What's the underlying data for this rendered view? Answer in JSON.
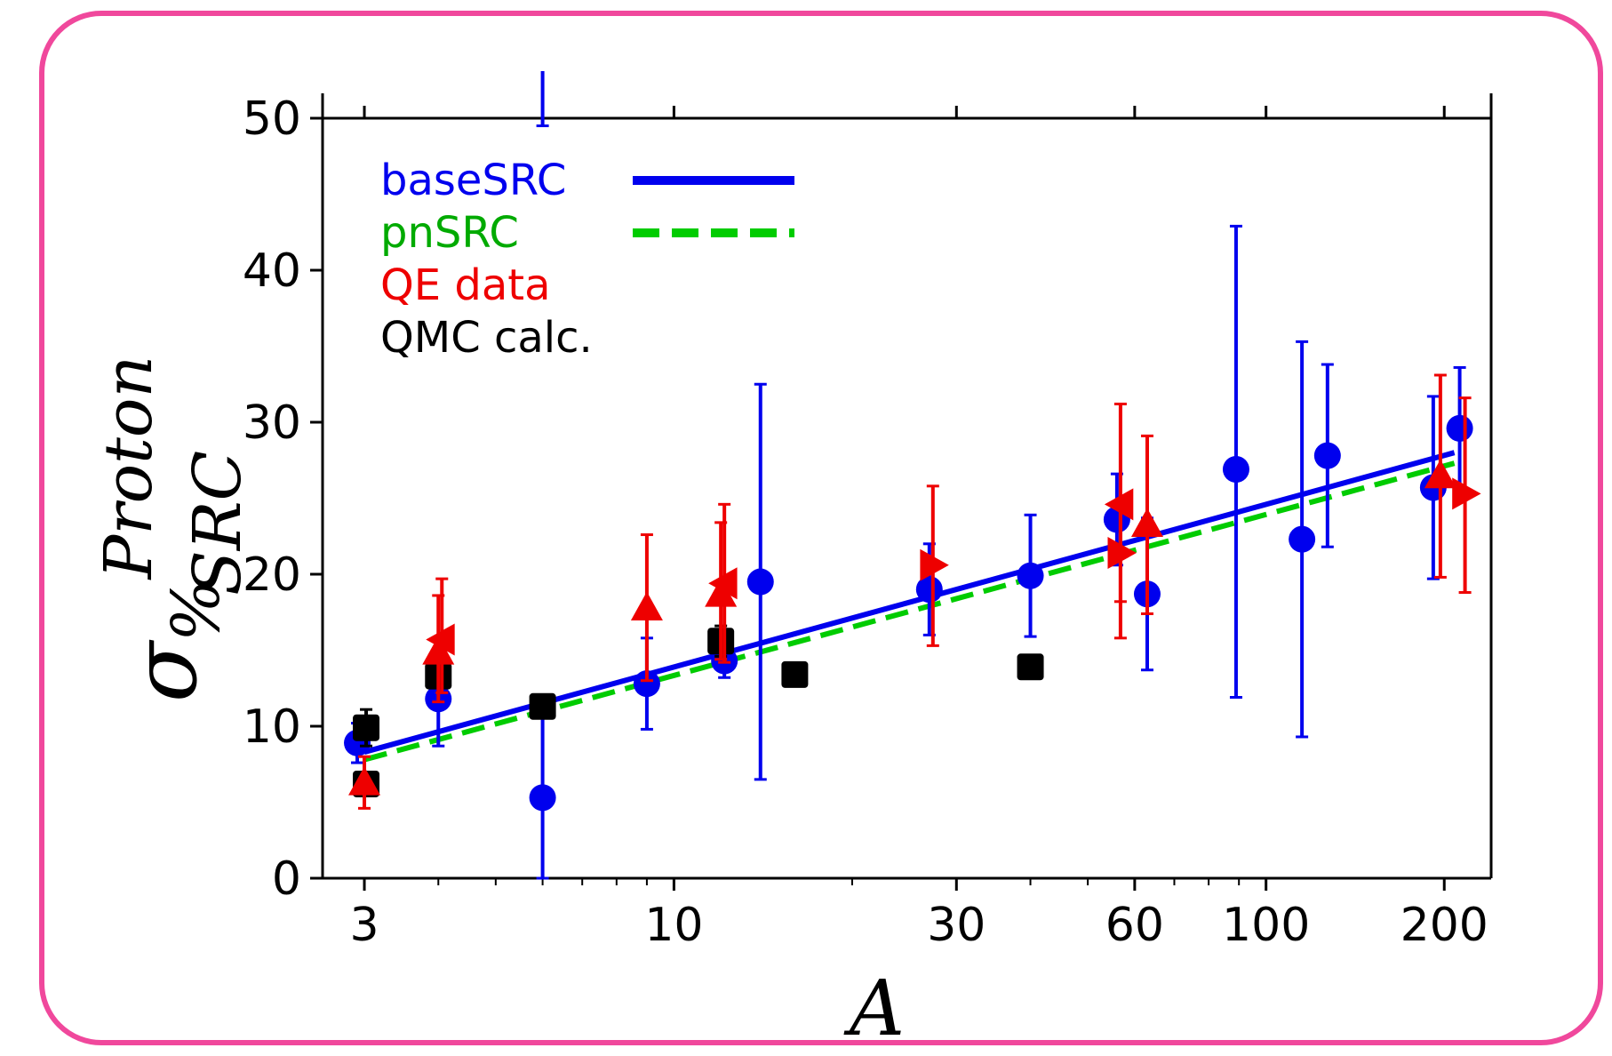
{
  "chart_data": {
    "type": "scatter",
    "xlabel": "A",
    "ylabel": "%",
    "ylabel_main": "σ",
    "ylabel_sup": "Proton",
    "ylabel_sub": "SRC",
    "x_scale": "log",
    "xlim": [
      2.55,
      240
    ],
    "ylim": [
      0,
      50
    ],
    "x_ticks": [
      3,
      10,
      30,
      60,
      100,
      200
    ],
    "y_ticks": [
      0,
      10,
      20,
      30,
      40,
      50
    ],
    "grid": false,
    "legend_position": "top-left",
    "series": [
      {
        "name": "baseSRC",
        "kind": "line",
        "color": "#0000ee",
        "style": "solid",
        "x": [
          3,
          208
        ],
        "y": [
          8.3,
          28.0
        ]
      },
      {
        "name": "pnSRC",
        "kind": "line",
        "color": "#00cc00",
        "style": "dashed",
        "x": [
          3,
          208
        ],
        "y": [
          7.8,
          27.3
        ]
      },
      {
        "name": "",
        "kind": "scatter",
        "marker": "circle",
        "color": "#0000ee",
        "points": [
          {
            "x": 3,
            "y": 8.9,
            "lo": 7.6,
            "hi": 10.2
          },
          {
            "x": 4,
            "y": 11.8,
            "lo": 8.7,
            "hi": 15.0
          },
          {
            "x": 6,
            "y": 5.3,
            "lo": 0.0,
            "hi": 11.0
          },
          {
            "x": 9,
            "y": 12.8,
            "lo": 9.8,
            "hi": 15.8
          },
          {
            "x": 12,
            "y": 14.3,
            "lo": 13.2,
            "hi": 15.4
          },
          {
            "x": 14,
            "y": 19.5,
            "lo": 6.5,
            "hi": 32.5
          },
          {
            "x": 27,
            "y": 19.0,
            "lo": 16.0,
            "hi": 22.0
          },
          {
            "x": 40,
            "y": 19.9,
            "lo": 15.9,
            "hi": 23.9
          },
          {
            "x": 56,
            "y": 23.6,
            "lo": 20.6,
            "hi": 26.6
          },
          {
            "x": 63,
            "y": 18.7,
            "lo": 13.7,
            "hi": 23.7
          },
          {
            "x": 89,
            "y": 26.9,
            "lo": 11.9,
            "hi": 42.9
          },
          {
            "x": 115,
            "y": 22.3,
            "lo": 9.3,
            "hi": 35.3
          },
          {
            "x": 127,
            "y": 27.8,
            "lo": 21.8,
            "hi": 33.8
          },
          {
            "x": 197,
            "y": 25.7,
            "lo": 19.7,
            "hi": 31.7
          },
          {
            "x": 208,
            "y": 29.6,
            "lo": 25.6,
            "hi": 33.6
          }
        ]
      },
      {
        "name": "",
        "kind": "scatter",
        "marker": "square",
        "color": "#000000",
        "points": [
          {
            "x": 3,
            "y": 6.2,
            "lo": 5.7,
            "hi": 6.7
          },
          {
            "x": 3,
            "y": 9.9,
            "lo": 8.7,
            "hi": 11.1
          },
          {
            "x": 4,
            "y": 13.3,
            "lo": 12.8,
            "hi": 13.8
          },
          {
            "x": 6,
            "y": 11.3,
            "lo": 10.6,
            "hi": 12.0
          },
          {
            "x": 12,
            "y": 15.6,
            "lo": 14.6,
            "hi": 16.6
          },
          {
            "x": 16,
            "y": 13.4,
            "lo": 12.9,
            "hi": 13.9
          },
          {
            "x": 40,
            "y": 13.9,
            "lo": 13.2,
            "hi": 14.6
          }
        ]
      },
      {
        "name": "",
        "kind": "scatter",
        "marker": "mixed-triangles",
        "color": "#ee0000",
        "points": [
          {
            "x": 3,
            "y": 6.3,
            "lo": 4.6,
            "hi": 8.0,
            "marker": "up"
          },
          {
            "x": 4,
            "y": 14.9,
            "lo": 11.6,
            "hi": 18.6,
            "marker": "up"
          },
          {
            "x": 4,
            "y": 15.7,
            "lo": 12.2,
            "hi": 19.7,
            "marker": "left"
          },
          {
            "x": 9,
            "y": 17.8,
            "lo": 13.0,
            "hi": 22.6,
            "marker": "up"
          },
          {
            "x": 12,
            "y": 18.7,
            "lo": 14.4,
            "hi": 23.4,
            "marker": "up"
          },
          {
            "x": 12,
            "y": 19.4,
            "lo": 14.2,
            "hi": 24.6,
            "marker": "left"
          },
          {
            "x": 27,
            "y": 20.6,
            "lo": 15.3,
            "hi": 25.8,
            "marker": "right"
          },
          {
            "x": 56,
            "y": 21.4,
            "lo": 18.2,
            "hi": 24.6,
            "marker": "right"
          },
          {
            "x": 56,
            "y": 24.6,
            "lo": 15.8,
            "hi": 31.2,
            "marker": "left"
          },
          {
            "x": 63,
            "y": 23.3,
            "lo": 17.4,
            "hi": 29.1,
            "marker": "up"
          },
          {
            "x": 197,
            "y": 26.5,
            "lo": 19.8,
            "hi": 33.1,
            "marker": "up"
          },
          {
            "x": 208,
            "y": 25.3,
            "lo": 18.8,
            "hi": 31.6,
            "marker": "right"
          }
        ]
      },
      {
        "name": "",
        "kind": "errorbar-only",
        "color": "#0000ee",
        "points": [
          {
            "x": 6,
            "lo": 49.5,
            "hi": 54.0
          }
        ]
      }
    ],
    "legend": [
      {
        "label": "baseSRC",
        "color": "#0000ee",
        "sample": "solid"
      },
      {
        "label": "pnSRC",
        "color": "#00aa00",
        "sample": "dashed"
      },
      {
        "label": "QE data",
        "color": "#ee0000",
        "sample": "none"
      },
      {
        "label": "QMC calc.",
        "color": "#000000",
        "sample": "none"
      }
    ]
  }
}
